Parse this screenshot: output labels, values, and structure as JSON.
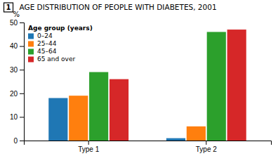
{
  "chart_data": {
    "type": "bar",
    "title": "AGE DISTRIBUTION OF PEOPLE WITH DIABETES, 2001",
    "annotations": [
      "1"
    ],
    "ylabel": "%",
    "categories": [
      "Type 1",
      "Type 2"
    ],
    "legend_title": "Age group (years)",
    "series": [
      {
        "name": "0–24",
        "values": [
          18,
          1
        ]
      },
      {
        "name": "25–44",
        "values": [
          19,
          6
        ]
      },
      {
        "name": "45–64",
        "values": [
          29,
          46
        ]
      },
      {
        "name": "65 and over",
        "values": [
          26,
          47
        ]
      }
    ],
    "ylim": [
      0,
      50
    ],
    "yticks": [
      0,
      10,
      20,
      30,
      40,
      50
    ],
    "grid": false,
    "legend": "upper left"
  }
}
